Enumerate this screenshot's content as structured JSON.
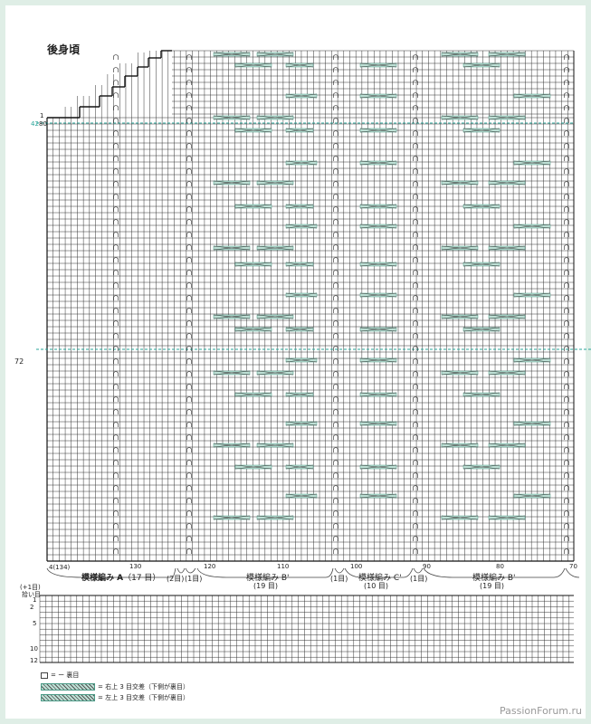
{
  "title": "後身頃",
  "row_markers": {
    "left_top": "1",
    "left_rows": "42",
    "left_sts": "80",
    "side_72": "72"
  },
  "col_numbers": {
    "n130": "130",
    "n120": "120",
    "n110": "110",
    "n100": "100",
    "n90": "90",
    "n80": "80",
    "n70": "70",
    "n134": "4(134)"
  },
  "sections": {
    "a_label": "模様編み A",
    "a_count": "（17 目）",
    "g2": "(2目)",
    "g1a": "(1目)",
    "b1_label": "模様編み B'",
    "b1_count": "(19 目)",
    "g1b": "(1目)",
    "c_label": "模様編み C'",
    "c_count": "(10 目)",
    "g1c": "(1目)",
    "b2_label": "模様編み B'",
    "b2_count": "(19 目)"
  },
  "pickup": {
    "l1": "(+1目)",
    "l2": "拾い目",
    "r1": "1",
    "r2": "2",
    "r5": "5",
    "r10": "10",
    "r12": "12"
  },
  "legend": {
    "l1": "= ー 裏目",
    "l2": "= 右上 3 目交差（下側が裏目）",
    "l3": "= 左上 3 目交差（下側が裏目）"
  },
  "watermark": "PassionForum.ru",
  "colors": {
    "grid": "#333333",
    "teal": "#2aa59a",
    "cable": "#4a9a86"
  }
}
